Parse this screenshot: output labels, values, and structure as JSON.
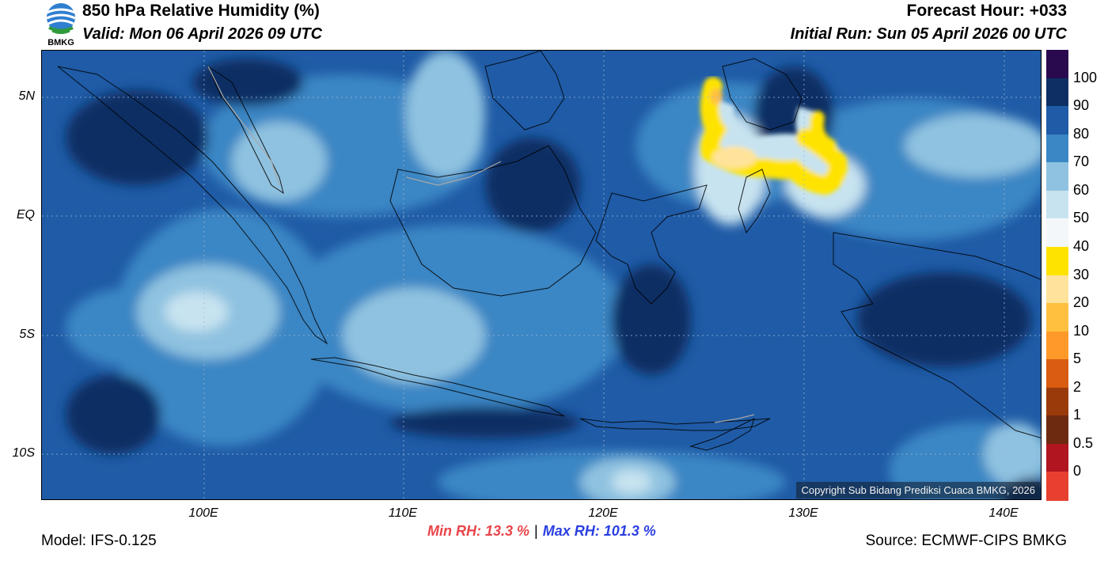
{
  "header": {
    "title": "850 hPa Relative Humidity (%)",
    "valid": "Valid: Mon 06 April 2026 09 UTC",
    "forecast_hour": "Forecast Hour: +033",
    "initial_run": "Initial Run: Sun 05 April 2026 00 UTC",
    "logo_text": "BMKG"
  },
  "map": {
    "lat_labels": [
      "5N",
      "EQ",
      "5S",
      "10S"
    ],
    "lon_labels": [
      "100E",
      "110E",
      "120E",
      "130E",
      "140E"
    ],
    "copyright": "Copyright Sub Bidang Prediksi Cuaca BMKG, 2026"
  },
  "colorbar": {
    "labels": [
      "100",
      "90",
      "80",
      "70",
      "60",
      "50",
      "40",
      "30",
      "20",
      "10",
      "5",
      "2",
      "1",
      "0.5",
      "0"
    ],
    "colors": [
      "#2a0a4f",
      "#0e2f63",
      "#1f5ba6",
      "#3b86c4",
      "#8fc2e0",
      "#c7e3f0",
      "#f4f7f9",
      "#ffe300",
      "#ffe39a",
      "#ffc040",
      "#ff9a2a",
      "#d95c10",
      "#9a3a0a",
      "#6e2a10",
      "#b01520",
      "#e84030"
    ]
  },
  "stats": {
    "min_rh": "Min RH:  13.3 %",
    "separator": "|",
    "max_rh": "Max RH: 101.3 %"
  },
  "footer": {
    "model": "Model: IFS-0.125",
    "source": "Source: ECMWF-CIPS BMKG"
  }
}
